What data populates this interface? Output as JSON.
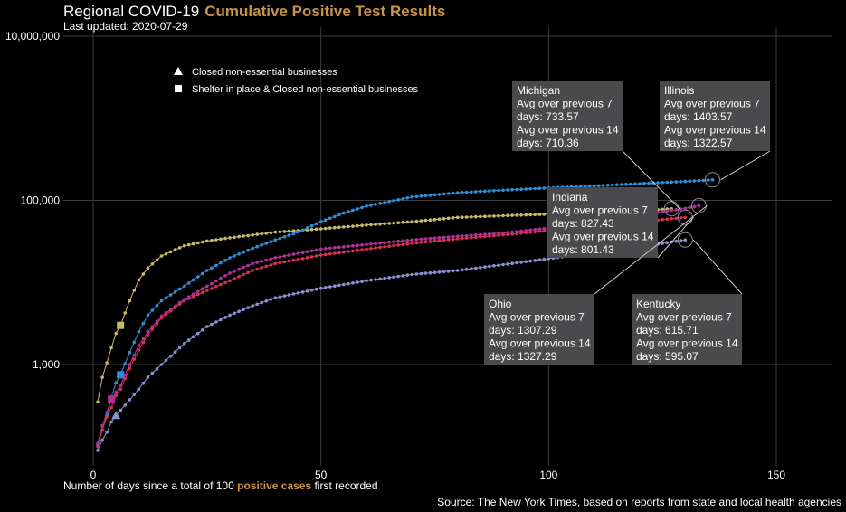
{
  "header": {
    "title_main": "Regional COVID-19",
    "title_accent": "Cumulative Positive Test Results",
    "subtitle": "Last updated: 2020-07-29"
  },
  "footer": {
    "xlabel_pre": "Number of days since a total of 100 ",
    "xlabel_accent": "positive cases",
    "xlabel_post": " first recorded",
    "source": "Source: The New York Times, based on reports from state and local health agencies"
  },
  "legend": {
    "items": [
      {
        "shape": "triangle",
        "label": "Closed non-essential businesses"
      },
      {
        "shape": "square",
        "label": "Shelter in place & Closed non-essential businesses"
      }
    ]
  },
  "colors": {
    "Michigan": "#c9b96a",
    "Illinois": "#2e8fd6",
    "Indiana": "#d8324a",
    "Ohio": "#b0309a",
    "Kentucky": "#8a90d0",
    "accent": "#c9934a",
    "callout_bg": "#4a4a4c",
    "grid": "#3c3c3c"
  },
  "chart_data": {
    "type": "line",
    "xlim": [
      0,
      163
    ],
    "ylim": [
      10,
      10000000
    ],
    "yscale": "log",
    "x_ticks": [
      0,
      50,
      100,
      150
    ],
    "y_ticks": [
      1000,
      100000,
      10000000
    ],
    "y_tick_labels": [
      "1,000",
      "100,000",
      "10,000,000"
    ],
    "grid": true,
    "series": [
      {
        "name": "Michigan",
        "x": [
          1,
          2,
          3,
          4,
          5,
          6,
          8,
          10,
          12,
          15,
          18,
          20,
          25,
          30,
          40,
          50,
          60,
          70,
          80,
          90,
          100,
          110,
          120,
          127
        ],
        "values": [
          350,
          700,
          1050,
          1600,
          2400,
          3000,
          6000,
          10700,
          15000,
          21000,
          25000,
          28000,
          32000,
          35000,
          41000,
          45000,
          50000,
          55000,
          62000,
          65000,
          68000,
          72000,
          75000,
          79000
        ],
        "markers": [
          {
            "x": 6,
            "value": 3000,
            "shape": "square"
          }
        ]
      },
      {
        "name": "Illinois",
        "x": [
          1,
          2,
          3,
          4,
          5,
          6,
          8,
          10,
          12,
          15,
          20,
          25,
          30,
          35,
          40,
          45,
          50,
          55,
          60,
          70,
          80,
          90,
          100,
          110,
          120,
          130,
          136
        ],
        "values": [
          105,
          160,
          240,
          400,
          600,
          750,
          1400,
          2500,
          4000,
          6000,
          9000,
          14000,
          20000,
          26000,
          33000,
          41000,
          55000,
          70000,
          85000,
          110000,
          124000,
          133000,
          142000,
          150000,
          160000,
          170000,
          178000
        ],
        "markers": [
          {
            "x": 6,
            "value": 750,
            "shape": "square"
          }
        ]
      },
      {
        "name": "Indiana",
        "x": [
          1,
          2,
          3,
          4,
          5,
          6,
          8,
          10,
          12,
          15,
          20,
          25,
          30,
          35,
          40,
          50,
          60,
          70,
          80,
          90,
          100,
          110,
          120,
          130
        ],
        "values": [
          100,
          160,
          230,
          300,
          420,
          500,
          900,
          1500,
          2300,
          3700,
          6000,
          8000,
          10500,
          14000,
          17000,
          21500,
          25500,
          30000,
          34000,
          38000,
          43000,
          49000,
          55000,
          62000
        ]
      },
      {
        "name": "Ohio",
        "x": [
          1,
          2,
          3,
          4,
          5,
          6,
          8,
          10,
          12,
          15,
          20,
          25,
          30,
          35,
          40,
          50,
          60,
          70,
          80,
          90,
          100,
          110,
          120,
          130,
          133
        ],
        "values": [
          110,
          180,
          260,
          380,
          460,
          560,
          1000,
          1700,
          2500,
          3900,
          6200,
          9000,
          13000,
          17000,
          20000,
          25500,
          29000,
          33000,
          36500,
          40000,
          46000,
          55000,
          66000,
          80000,
          86000
        ],
        "markers": [
          {
            "x": 4,
            "value": 380,
            "shape": "square"
          }
        ]
      },
      {
        "name": "Kentucky",
        "x": [
          1,
          2,
          3,
          4,
          5,
          7,
          10,
          12,
          15,
          20,
          25,
          30,
          35,
          40,
          50,
          60,
          70,
          80,
          90,
          100,
          110,
          120,
          125,
          130
        ],
        "values": [
          90,
          120,
          150,
          200,
          240,
          320,
          500,
          700,
          1000,
          1800,
          2900,
          4000,
          5200,
          6500,
          8500,
          10500,
          12500,
          14000,
          16500,
          19500,
          23000,
          27000,
          30000,
          33000
        ],
        "markers": [
          {
            "x": 5,
            "value": 240,
            "shape": "triangle"
          }
        ]
      }
    ],
    "callouts": [
      {
        "series": "Michigan",
        "lines": [
          "Michigan",
          "Avg over previous 7",
          "days: 733.57",
          "Avg over previous 14",
          "days: 710.36"
        ]
      },
      {
        "series": "Illinois",
        "lines": [
          "Illinois",
          "Avg over previous 7",
          "days: 1403.57",
          "Avg over previous 14",
          "days: 1322.57"
        ]
      },
      {
        "series": "Indiana",
        "lines": [
          "Indiana",
          "Avg over previous 7",
          "days: 827.43",
          "Avg over previous 14",
          "days: 801.43"
        ]
      },
      {
        "series": "Ohio",
        "lines": [
          "Ohio",
          "Avg over previous 7",
          "days: 1307.29",
          "Avg over previous 14",
          "days: 1327.29"
        ]
      },
      {
        "series": "Kentucky",
        "lines": [
          "Kentucky",
          "Avg over previous 7",
          "days: 615.71",
          "Avg over previous 14",
          "days: 595.07"
        ]
      }
    ]
  }
}
